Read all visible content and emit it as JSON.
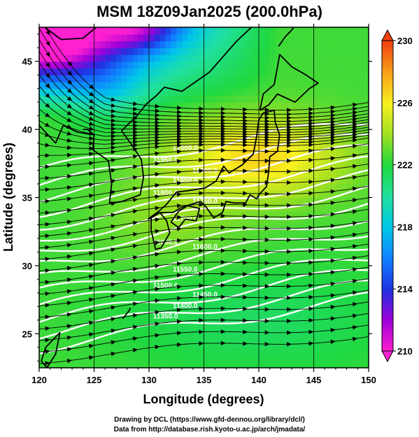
{
  "chart_data": {
    "type": "heatmap",
    "title": "MSM 18Z09Jan2025 (200.0hPa)",
    "xlabel": "Longitude (degrees)",
    "ylabel": "Latitude  (degrees)",
    "xlim": [
      120,
      150
    ],
    "ylim": [
      22.5,
      47.5
    ],
    "x_ticks": [
      "120",
      "125",
      "130",
      "135",
      "140",
      "145",
      "150"
    ],
    "y_ticks": [
      "25",
      "30",
      "35",
      "40",
      "45"
    ],
    "colorbar": {
      "range": [
        210,
        230
      ],
      "ticks": [
        "210",
        "214",
        "218",
        "222",
        "226",
        "230"
      ],
      "colors": [
        "#ff20d0",
        "#a000d8",
        "#2030e0",
        "#1080ff",
        "#00c8e8",
        "#20e0a0",
        "#20d840",
        "#a0e020",
        "#f8f020",
        "#f8a018",
        "#f04010"
      ]
    },
    "contour_labels": [
      "12000.0",
      "11950.0",
      "11900.0",
      "11850.0",
      "11800.0",
      "11750.0",
      "11700.0",
      "11650.0",
      "11600.0",
      "11550.0",
      "11500.0",
      "11450.0",
      "11400.0",
      "11350.0"
    ],
    "contour_units": "m"
  },
  "credits": {
    "line1": "Drawing by DCL (https://www.gfd-dennou.org/library/dcl/)",
    "line2": "Data from http://database.rish.kyoto-u.ac.jp/arch/jmadata/"
  }
}
